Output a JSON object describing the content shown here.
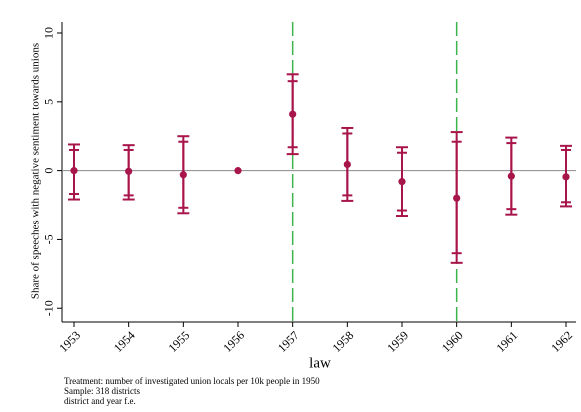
{
  "chart_data": {
    "type": "coefplot",
    "y_label": "Share of speeches with negative sentiment towards unions",
    "x_label": "law",
    "notes": [
      "Treatment: number of investigated union locals per 10k people in 1950",
      "Sample: 318 districts",
      "district and year f.e."
    ],
    "categories": [
      "1953",
      "1954",
      "1955",
      "1956",
      "1957",
      "1958",
      "1959",
      "1960",
      "1961",
      "1962"
    ],
    "estimates": [
      0.0,
      -0.05,
      -0.3,
      0.0,
      4.1,
      0.45,
      -0.8,
      -2.0,
      -0.4,
      -0.45
    ],
    "ci_outer_low": [
      -2.1,
      -2.1,
      -3.1,
      null,
      1.2,
      -2.2,
      -3.3,
      -6.7,
      -3.2,
      -2.6
    ],
    "ci_outer_high": [
      1.9,
      1.85,
      2.5,
      null,
      7.0,
      3.1,
      1.7,
      2.8,
      2.4,
      1.8
    ],
    "ci_inner_low": [
      -1.7,
      -1.8,
      -2.7,
      null,
      1.7,
      -1.8,
      -2.9,
      -6.0,
      -2.8,
      -2.3
    ],
    "ci_inner_high": [
      1.5,
      1.5,
      2.1,
      null,
      6.5,
      2.7,
      1.3,
      2.1,
      2.0,
      1.5
    ],
    "color": "#a8154a",
    "reference_lines_x": [
      "1957",
      "1960"
    ],
    "reference_line_color": "#3cb44b",
    "reference_line_y": 0,
    "ylim": [
      -11,
      10.8
    ],
    "yticks": [
      -10,
      -5,
      0,
      5,
      10
    ]
  }
}
